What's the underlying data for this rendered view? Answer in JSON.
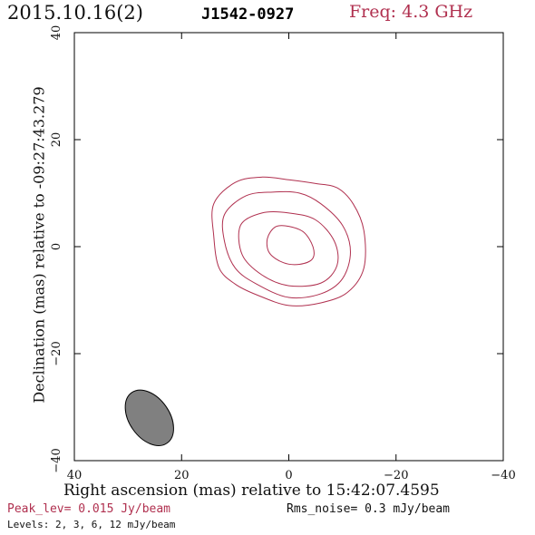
{
  "header": {
    "date": "2015.10.16(2)",
    "source": "J1542-0927",
    "freq": "Freq: 4.3 GHz"
  },
  "footer": {
    "peak": "Peak_lev=  0.015 Jy/beam",
    "rms": "Rms_noise=  0.3 mJy/beam",
    "levels": "Levels:  2,  3,  6,  12 mJy/beam"
  },
  "colors": {
    "contour": "#b0304f",
    "beam": "#808080"
  },
  "chart_data": {
    "type": "contour",
    "xlabel": "Right ascension (mas) relative to 15:42:07.4595",
    "ylabel": "Declination (mas) relative to -09:27:43.279",
    "xlim": [
      40,
      -40
    ],
    "ylim": [
      -40,
      40
    ],
    "xticks": [
      40,
      20,
      0,
      -20,
      -40
    ],
    "yticks": [
      -40,
      -20,
      0,
      20,
      40
    ],
    "xtick_labels": [
      "40",
      "20",
      "0",
      "−20",
      "−40"
    ],
    "ytick_labels": [
      "−40",
      "−20",
      "0",
      "20",
      "40"
    ],
    "contour_levels_mJy": [
      2,
      3,
      6,
      12
    ],
    "contours": [
      {
        "level": 2,
        "points": [
          [
            14,
            8
          ],
          [
            10,
            12
          ],
          [
            5,
            13
          ],
          [
            0,
            12.5
          ],
          [
            -5,
            11.8
          ],
          [
            -9,
            11
          ],
          [
            -12,
            8
          ],
          [
            -14,
            3
          ],
          [
            -14,
            -4
          ],
          [
            -11,
            -8.5
          ],
          [
            -6,
            -10.5
          ],
          [
            0,
            -11
          ],
          [
            6,
            -9
          ],
          [
            10,
            -7
          ],
          [
            13,
            -4
          ],
          [
            14,
            2
          ]
        ]
      },
      {
        "level": 3,
        "points": [
          [
            12,
            6
          ],
          [
            8,
            9.5
          ],
          [
            3,
            10.2
          ],
          [
            -2,
            10
          ],
          [
            -6,
            8
          ],
          [
            -10,
            4
          ],
          [
            -11.5,
            -1
          ],
          [
            -10,
            -6
          ],
          [
            -6,
            -8.8
          ],
          [
            0,
            -9.5
          ],
          [
            6,
            -7
          ],
          [
            10,
            -4
          ],
          [
            12,
            1
          ]
        ]
      },
      {
        "level": 6,
        "points": [
          [
            9,
            4
          ],
          [
            5,
            6.3
          ],
          [
            0,
            6.3
          ],
          [
            -5,
            5
          ],
          [
            -8.5,
            1
          ],
          [
            -9,
            -3.5
          ],
          [
            -6,
            -6.8
          ],
          [
            0,
            -7.3
          ],
          [
            5,
            -5.3
          ],
          [
            8.7,
            -1.5
          ]
        ]
      },
      {
        "level": 12,
        "points": [
          [
            2.5,
            3.7
          ],
          [
            0,
            3.8
          ],
          [
            -2.8,
            2.7
          ],
          [
            -4.5,
            0
          ],
          [
            -4.4,
            -2.3
          ],
          [
            -2,
            -3.3
          ],
          [
            1,
            -3
          ],
          [
            3.6,
            -1.2
          ],
          [
            4,
            1.5
          ]
        ]
      }
    ],
    "beam": {
      "x": 26,
      "y": -32,
      "major_mas": 11.5,
      "minor_mas": 7.5,
      "pa_deg": -35
    }
  }
}
